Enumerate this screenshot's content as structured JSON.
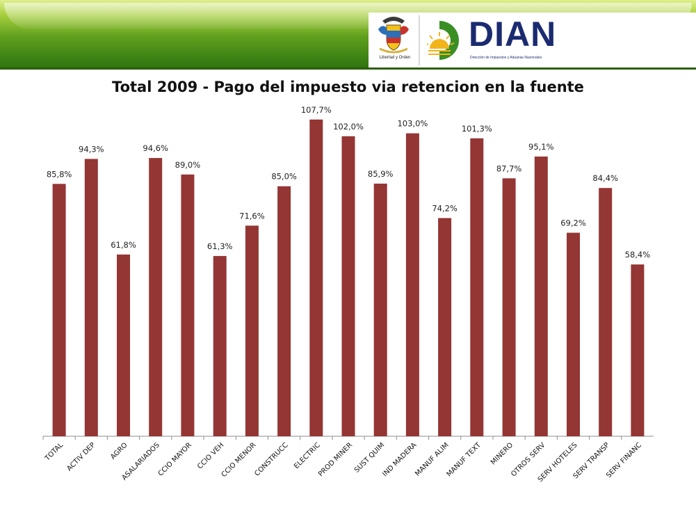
{
  "header": {
    "crest_caption": "Libertad y Orden",
    "brand_name": "DIAN",
    "brand_subtitle": "Dirección de Impuestos y Aduanas Nacionales"
  },
  "chart_data": {
    "type": "bar",
    "title": "Total 2009 - Pago del impuesto via retencion en la fuente",
    "xlabel": "",
    "ylabel": "",
    "ylim": [
      0,
      110
    ],
    "grid": false,
    "legend": "none",
    "bar_color": "#943634",
    "categories": [
      "TOTAL",
      "ACTIV DEP",
      "AGRO",
      "ASALARIADOS",
      "CCIO MAYOR",
      "CCIO VEH",
      "CCIO MENOR",
      "CONSTRUCC",
      "ELECTRIC",
      "PROD MINER",
      "SUST QUIM",
      "IND MADERA",
      "MANUF ALIM",
      "MANUF TEXT",
      "MINERO",
      "OTROS SERV",
      "SERV HOTELES",
      "SERV TRANSP",
      "SERV FINANC"
    ],
    "values": [
      85.8,
      94.3,
      61.8,
      94.6,
      89.0,
      61.3,
      71.6,
      85.0,
      107.7,
      102.0,
      85.9,
      103.0,
      74.2,
      101.3,
      87.7,
      95.1,
      69.2,
      84.4,
      58.4
    ],
    "data_labels": [
      "85,8%",
      "94,3%",
      "61,8%",
      "94,6%",
      "89,0%",
      "61,3%",
      "71,6%",
      "85,0%",
      "107,7%",
      "102,0%",
      "85,9%",
      "103,0%",
      "74,2%",
      "101,3%",
      "87,7%",
      "95,1%",
      "69,2%",
      "84,4%",
      "58,4%"
    ]
  }
}
